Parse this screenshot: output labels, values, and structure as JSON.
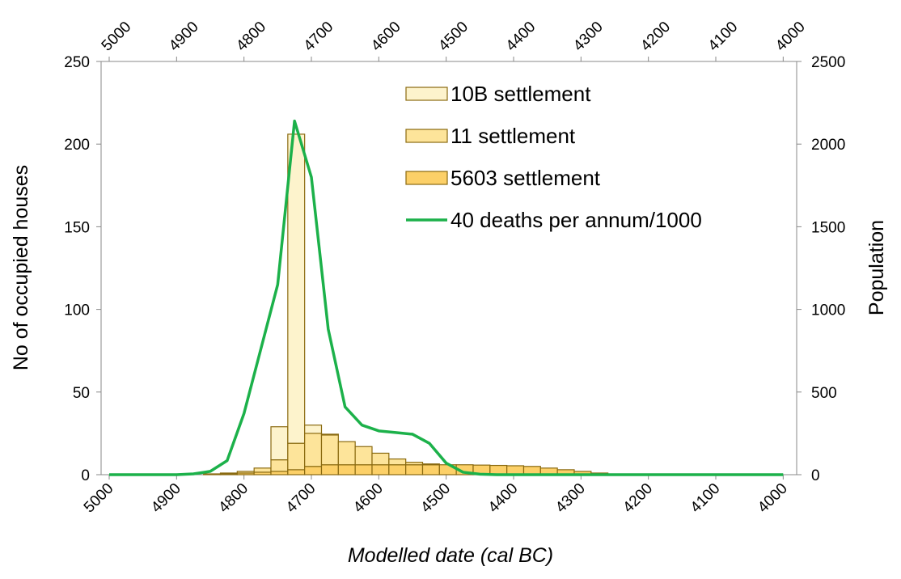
{
  "chart_data": {
    "type": "histogram",
    "x_label": "Modelled date (cal BC)",
    "y_label": "No of occupied houses",
    "y2_label": "Population",
    "xlim": [
      5012,
      3980
    ],
    "xticks": [
      5000,
      4900,
      4800,
      4700,
      4600,
      4500,
      4400,
      4300,
      4200,
      4100,
      4000
    ],
    "x2lim": [
      5012,
      3980
    ],
    "x2ticks": [
      5000,
      4900,
      4800,
      4700,
      4600,
      4500,
      4400,
      4300,
      4200,
      4100,
      4000
    ],
    "ylim": [
      0,
      250
    ],
    "yticks": [
      0,
      50,
      100,
      150,
      200,
      250
    ],
    "y2lim": [
      0,
      2500
    ],
    "y2ticks": [
      0,
      500,
      1000,
      1500,
      2000,
      2500
    ],
    "stacked": true,
    "legend": "upper right",
    "bins": [
      4860,
      4835,
      4810,
      4785,
      4760,
      4735,
      4710,
      4685,
      4660,
      4635,
      4610,
      4585,
      4560,
      4535,
      4510,
      4485,
      4460,
      4435,
      4410,
      4385,
      4360,
      4335,
      4310,
      4285,
      4260
    ],
    "series": [
      {
        "name": "10B settlement",
        "color": "#fdf3cc",
        "values": [
          0,
          0,
          0,
          0,
          20,
          187,
          5,
          0.5,
          0,
          0,
          0,
          0,
          0,
          0,
          0,
          0,
          0,
          0,
          0,
          0,
          0,
          0,
          0,
          0
        ]
      },
      {
        "name": "11 settlement",
        "color": "#fde49a",
        "values": [
          0.2,
          0.5,
          1,
          2.5,
          7,
          16,
          20,
          18,
          14,
          11,
          7,
          3.5,
          1.5,
          0.5,
          0,
          0,
          0,
          0,
          0,
          0,
          0,
          0,
          0,
          0
        ]
      },
      {
        "name": "5603 settlement",
        "color": "#fcd068",
        "values": [
          0.3,
          0.5,
          1,
          1.5,
          2,
          3,
          5,
          6,
          6,
          6,
          6,
          6,
          6,
          6,
          6,
          6,
          5.8,
          5.6,
          5.4,
          5,
          4,
          3,
          2,
          1
        ]
      },
      {
        "name": "40 deaths per annum/1000",
        "type": "line",
        "axis": "y2",
        "color": "#1cb14a",
        "x": [
          5000,
          4975,
          4950,
          4925,
          4900,
          4875,
          4850,
          4825,
          4800,
          4775,
          4750,
          4725,
          4700,
          4675,
          4650,
          4625,
          4600,
          4575,
          4550,
          4525,
          4500,
          4475,
          4450,
          4425,
          4400,
          4375,
          4350,
          4325,
          4300,
          4275,
          4250,
          4225,
          4200,
          4175,
          4150,
          4125,
          4100,
          4075,
          4050,
          4025,
          4000
        ],
        "values": [
          0,
          0,
          0,
          0,
          0,
          5,
          20,
          85,
          370,
          760,
          1150,
          2140,
          1800,
          880,
          410,
          300,
          265,
          255,
          245,
          190,
          70,
          15,
          3,
          0,
          0,
          0,
          0,
          0,
          0,
          0,
          0,
          0,
          0,
          0,
          0,
          0,
          0,
          0,
          0,
          0,
          0
        ]
      }
    ]
  }
}
